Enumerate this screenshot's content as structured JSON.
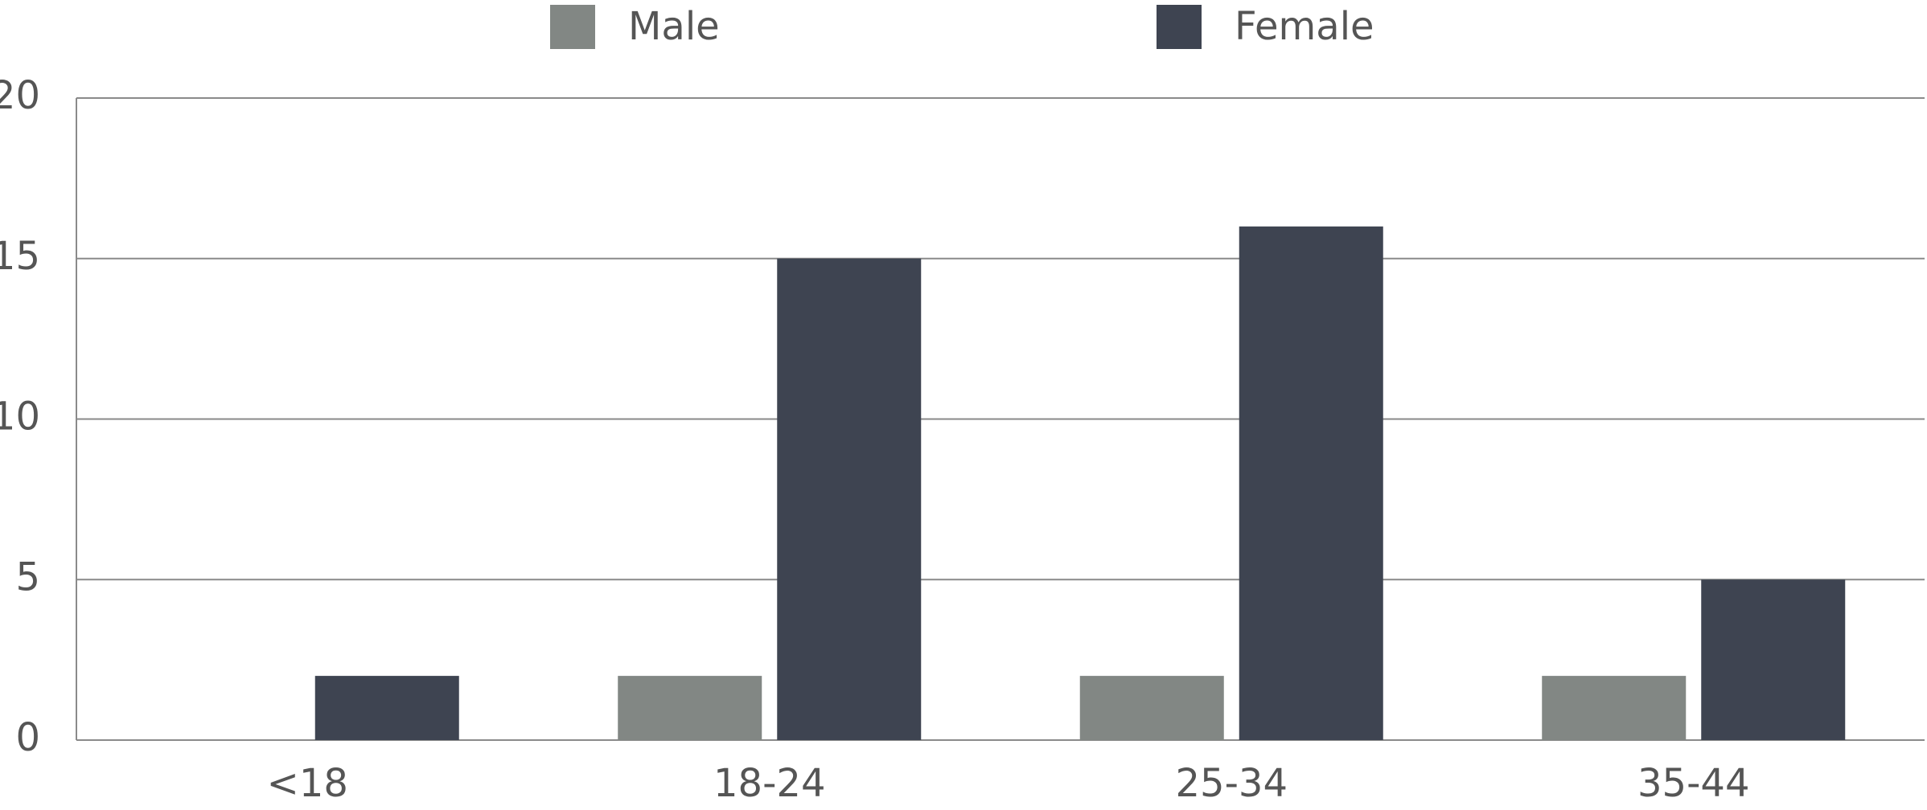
{
  "chart_data": {
    "type": "bar",
    "categories": [
      "<18",
      "18-24",
      "25-34",
      "35-44"
    ],
    "series": [
      {
        "name": "Male",
        "color": "#828784",
        "values": [
          0,
          2,
          2,
          2
        ]
      },
      {
        "name": "Female",
        "color": "#3e4451",
        "values": [
          2,
          15,
          16,
          5
        ]
      }
    ],
    "ylim": [
      0,
      20
    ],
    "yticks": [
      0,
      5,
      10,
      15,
      20
    ],
    "grid": true,
    "legend": "top"
  }
}
